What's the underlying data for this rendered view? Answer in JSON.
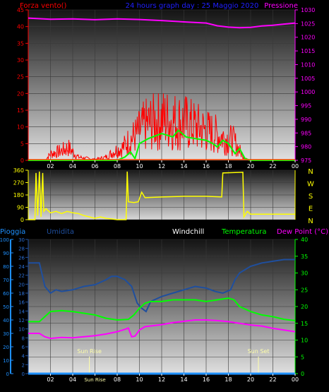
{
  "header": {
    "left_label": "Forza vento()",
    "center_label": "24 hours graph day : 25 Maggio 2020",
    "right_label": "Pressione"
  },
  "colors": {
    "background": "#000000",
    "wind": "#ff0000",
    "gust": "#00ff00",
    "pressure": "#ff00ff",
    "direction": "#ffff00",
    "pioggia": "#1e90ff",
    "umidita": "#1f4f9e",
    "windchill": "#ffffff",
    "temperatura": "#00ff00",
    "dewpoint": "#ff00ff",
    "sun_marker": "#ffffaa"
  },
  "time_ticks": [
    "02",
    "04",
    "06",
    "08",
    "10",
    "12",
    "14",
    "16",
    "18",
    "20",
    "22",
    "00"
  ],
  "chart_data": [
    {
      "type": "line",
      "id": "wind-pressure",
      "y_left": {
        "label": "Forza vento()",
        "range": [
          0,
          45
        ],
        "ticks": [
          "0",
          "5",
          "10",
          "15",
          "20",
          "25",
          "30",
          "35",
          "40",
          "45"
        ]
      },
      "y_right": {
        "label": "Pressione",
        "range": [
          975,
          1030
        ],
        "ticks": [
          "975",
          "980",
          "985",
          "990",
          "995",
          "1000",
          "1005",
          "1010",
          "1015",
          "1020",
          "1025",
          "1030"
        ]
      },
      "x_range": [
        0,
        24
      ],
      "series": [
        {
          "key": "wind",
          "axis": "left",
          "color": "#ff0000",
          "mode": "noise",
          "anchors": [
            [
              0,
              0
            ],
            [
              1.5,
              0
            ],
            [
              2,
              2
            ],
            [
              3,
              3
            ],
            [
              3.6,
              4
            ],
            [
              4.5,
              1
            ],
            [
              6,
              0.3
            ],
            [
              7,
              1
            ],
            [
              7.8,
              3
            ],
            [
              8.5,
              4
            ],
            [
              9,
              6
            ],
            [
              9.7,
              8
            ],
            [
              10.5,
              11
            ],
            [
              12,
              13
            ],
            [
              14,
              12
            ],
            [
              15.5,
              10
            ],
            [
              17,
              8
            ],
            [
              18.5,
              6
            ],
            [
              19.2,
              2
            ],
            [
              19.8,
              0
            ],
            [
              24,
              0
            ]
          ]
        },
        {
          "key": "gust",
          "axis": "left",
          "color": "#00ff00",
          "points": [
            [
              0,
              0
            ],
            [
              8,
              0
            ],
            [
              8.7,
              1
            ],
            [
              9.2,
              2.5
            ],
            [
              9.6,
              0.5
            ],
            [
              10,
              5
            ],
            [
              10.8,
              6.5
            ],
            [
              12,
              8
            ],
            [
              13,
              7
            ],
            [
              13.5,
              9
            ],
            [
              14.2,
              7
            ],
            [
              15,
              6.5
            ],
            [
              16,
              6
            ],
            [
              16.6,
              5
            ],
            [
              17,
              4
            ],
            [
              17.5,
              6
            ],
            [
              18,
              5
            ],
            [
              18.6,
              2
            ],
            [
              19,
              3.5
            ],
            [
              19.5,
              0.5
            ],
            [
              20,
              0
            ],
            [
              24,
              0
            ]
          ]
        },
        {
          "key": "pressure",
          "axis": "right",
          "color": "#ff00ff",
          "points": [
            [
              0,
              1027
            ],
            [
              2,
              1026.6
            ],
            [
              4,
              1026.7
            ],
            [
              6,
              1026.4
            ],
            [
              8,
              1026.7
            ],
            [
              10,
              1026.5
            ],
            [
              12,
              1026.1
            ],
            [
              14,
              1025.6
            ],
            [
              16,
              1025.2
            ],
            [
              17,
              1024.2
            ],
            [
              18,
              1023.7
            ],
            [
              19,
              1023.5
            ],
            [
              20,
              1023.6
            ],
            [
              21,
              1024.1
            ],
            [
              22,
              1024.4
            ],
            [
              23,
              1024.8
            ],
            [
              24,
              1025.2
            ]
          ]
        }
      ]
    },
    {
      "type": "line",
      "id": "wind-direction",
      "y_left": {
        "range": [
          0,
          360
        ],
        "ticks": [
          "0",
          "90",
          "180",
          "270",
          "360"
        ]
      },
      "y_right_letters": [
        "N",
        "W",
        "S",
        "E",
        "N"
      ],
      "x_range": [
        0,
        24
      ],
      "series": [
        {
          "key": "direction",
          "color": "#ffff00",
          "points": [
            [
              0,
              0
            ],
            [
              0.6,
              0
            ],
            [
              0.7,
              340
            ],
            [
              0.85,
              30
            ],
            [
              1.0,
              350
            ],
            [
              1.15,
              20
            ],
            [
              1.3,
              340
            ],
            [
              1.4,
              60
            ],
            [
              1.6,
              80
            ],
            [
              2,
              50
            ],
            [
              2.5,
              60
            ],
            [
              3,
              45
            ],
            [
              3.5,
              60
            ],
            [
              4,
              50
            ],
            [
              4.5,
              45
            ],
            [
              5,
              30
            ],
            [
              5.5,
              20
            ],
            [
              6,
              10
            ],
            [
              6.5,
              20
            ],
            [
              7,
              10
            ],
            [
              7.5,
              5
            ],
            [
              8,
              0
            ],
            [
              8.8,
              0
            ],
            [
              8.9,
              350
            ],
            [
              9,
              130
            ],
            [
              9.5,
              125
            ],
            [
              9.9,
              130
            ],
            [
              10.2,
              200
            ],
            [
              10.5,
              160
            ],
            [
              12,
              165
            ],
            [
              14,
              170
            ],
            [
              16,
              170
            ],
            [
              17.4,
              165
            ],
            [
              17.5,
              340
            ],
            [
              19.3,
              345
            ],
            [
              19.4,
              20
            ],
            [
              19.7,
              60
            ],
            [
              20,
              40
            ],
            [
              21,
              40
            ],
            [
              24,
              40
            ]
          ]
        }
      ]
    },
    {
      "type": "line",
      "id": "temp-humidity",
      "header": {
        "pioggia": "Pioggia",
        "umidita": "Umidita",
        "windchill": "Windchill",
        "temperatura": "Temperatura",
        "dewpoint": "Dew Point (°C)"
      },
      "y_far_left": {
        "label": "Pioggia",
        "range": [
          0,
          100
        ],
        "ticks": [
          "0",
          "10",
          "20",
          "30",
          "40",
          "50",
          "60",
          "70",
          "80",
          "90",
          "100"
        ]
      },
      "y_left": {
        "range": [
          0,
          30
        ],
        "ticks": [
          "0",
          "2",
          "4",
          "6",
          "8",
          "10",
          "12",
          "14",
          "16",
          "18",
          "20",
          "22",
          "24",
          "26",
          "28",
          "30"
        ]
      },
      "y_right": {
        "range": [
          0,
          40
        ],
        "ticks": [
          "0",
          "5",
          "10",
          "15",
          "20",
          "25",
          "30",
          "35",
          "40"
        ]
      },
      "x_range": [
        0,
        24
      ],
      "sun_rise": {
        "label": "Sun Rise",
        "hour": 5.5
      },
      "sun_set": {
        "label": "Sun Set",
        "hour": 20.7
      },
      "x_tick_labels": [
        "02",
        "04",
        "Sun Rise",
        "08",
        "10",
        "12",
        "14",
        "16",
        "18",
        "20",
        "22",
        "00"
      ],
      "series": [
        {
          "key": "pioggia",
          "axis": "far_left",
          "color": "#1e90ff",
          "points": [
            [
              0,
              0
            ],
            [
              24,
              0
            ]
          ]
        },
        {
          "key": "umidita",
          "axis": "right",
          "color": "#1f4f9e",
          "points": [
            [
              0,
              33
            ],
            [
              1,
              33
            ],
            [
              1.5,
              26
            ],
            [
              2,
              24
            ],
            [
              2.5,
              25
            ],
            [
              3,
              24.5
            ],
            [
              4,
              25
            ],
            [
              5,
              26
            ],
            [
              6,
              26.5
            ],
            [
              7,
              28
            ],
            [
              7.5,
              29
            ],
            [
              8,
              29
            ],
            [
              8.7,
              28
            ],
            [
              9.3,
              26
            ],
            [
              9.8,
              21
            ],
            [
              10.2,
              19.5
            ],
            [
              10.6,
              18.5
            ],
            [
              11,
              21.5
            ],
            [
              12,
              23
            ],
            [
              13,
              24
            ],
            [
              14,
              25
            ],
            [
              15,
              26
            ],
            [
              16,
              25.5
            ],
            [
              16.8,
              24.5
            ],
            [
              17.5,
              24
            ],
            [
              18.2,
              25
            ],
            [
              18.6,
              28
            ],
            [
              19,
              30
            ],
            [
              20,
              32
            ],
            [
              21,
              33
            ],
            [
              22,
              33.5
            ],
            [
              23,
              34
            ],
            [
              24,
              34
            ]
          ]
        },
        {
          "key": "temperatura",
          "axis": "right",
          "color": "#00ff00",
          "points": [
            [
              0,
              15.5
            ],
            [
              1,
              15.5
            ],
            [
              1.5,
              17
            ],
            [
              2,
              18.5
            ],
            [
              3,
              18.8
            ],
            [
              4,
              18.5
            ],
            [
              5,
              18
            ],
            [
              6,
              17.5
            ],
            [
              7,
              16.5
            ],
            [
              8,
              16
            ],
            [
              9,
              16.2
            ],
            [
              9.5,
              17.5
            ],
            [
              10,
              19.5
            ],
            [
              10.5,
              21
            ],
            [
              11,
              21.5
            ],
            [
              12,
              21.5
            ],
            [
              13,
              22
            ],
            [
              14,
              22
            ],
            [
              15,
              22
            ],
            [
              16,
              21.5
            ],
            [
              17,
              22
            ],
            [
              18,
              22.5
            ],
            [
              18.5,
              22
            ],
            [
              19,
              20
            ],
            [
              20,
              18.5
            ],
            [
              21,
              17.5
            ],
            [
              22,
              17
            ],
            [
              23,
              16.2
            ],
            [
              24,
              15.8
            ]
          ]
        },
        {
          "key": "dewpoint",
          "axis": "right",
          "color": "#ff00ff",
          "points": [
            [
              0,
              12
            ],
            [
              1,
              12
            ],
            [
              1.5,
              11
            ],
            [
              2,
              10.5
            ],
            [
              3,
              10.8
            ],
            [
              4,
              10.7
            ],
            [
              5,
              11
            ],
            [
              6,
              11.3
            ],
            [
              7,
              11.8
            ],
            [
              8,
              12.5
            ],
            [
              8.7,
              13.2
            ],
            [
              9,
              13.6
            ],
            [
              9.3,
              11
            ],
            [
              9.6,
              11.2
            ],
            [
              10,
              13
            ],
            [
              10.5,
              14
            ],
            [
              12,
              14.6
            ],
            [
              13,
              15.2
            ],
            [
              14,
              15.6
            ],
            [
              15,
              16
            ],
            [
              16,
              16
            ],
            [
              17,
              15.8
            ],
            [
              18,
              15.5
            ],
            [
              19,
              15
            ],
            [
              20,
              14.5
            ],
            [
              21,
              14.2
            ],
            [
              22,
              13.5
            ],
            [
              23,
              13
            ],
            [
              24,
              12.5
            ]
          ]
        }
      ]
    }
  ]
}
